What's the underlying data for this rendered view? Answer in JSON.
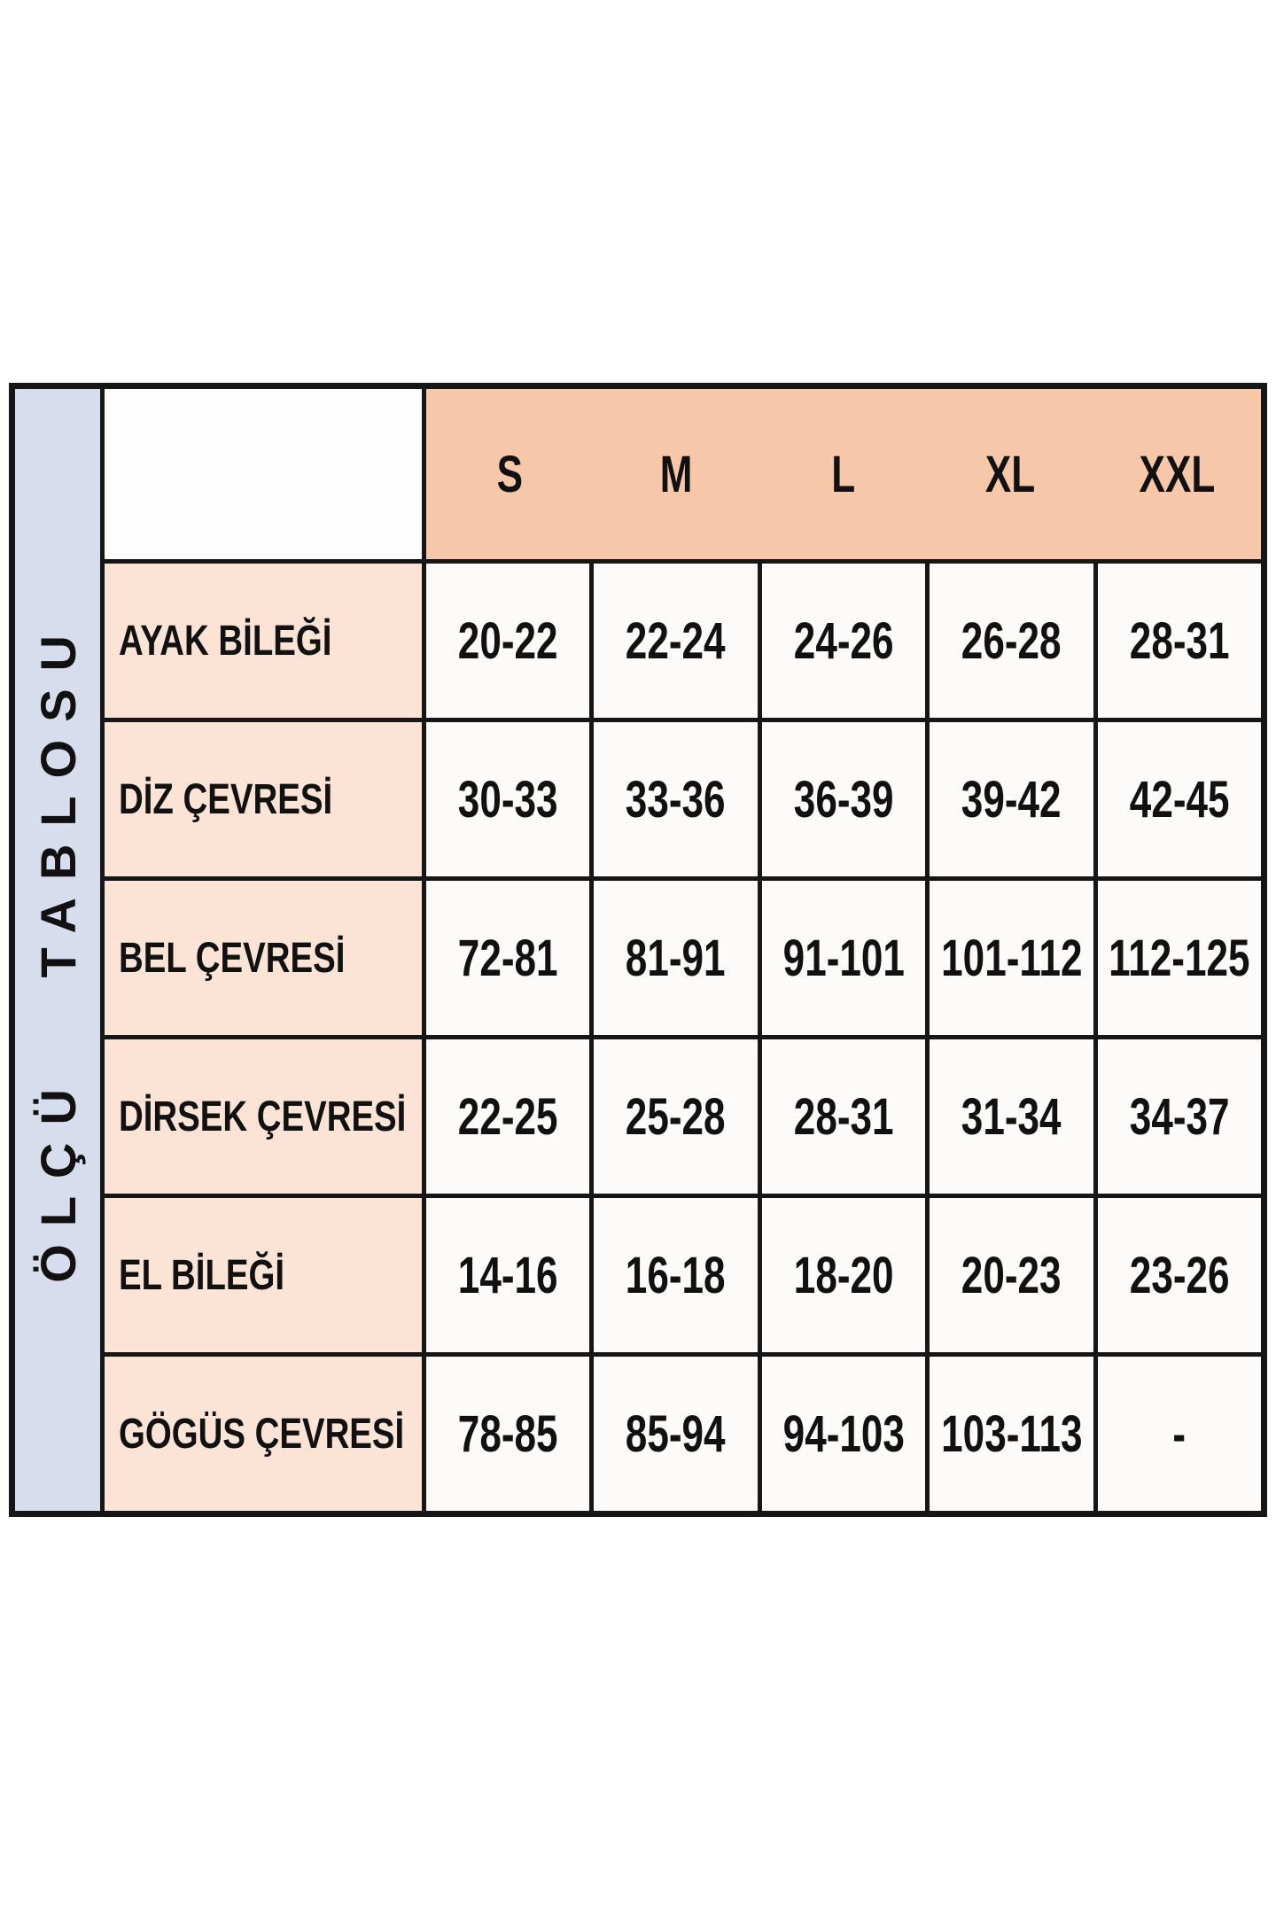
{
  "chart_data": {
    "type": "table",
    "title": "ÖLÇÜ TABLOSU",
    "columns": [
      "S",
      "M",
      "L",
      "XL",
      "XXL"
    ],
    "rows": [
      {
        "label": "AYAK BİLEĞİ",
        "values": [
          "20-22",
          "22-24",
          "24-26",
          "26-28",
          "28-31"
        ]
      },
      {
        "label": "DİZ ÇEVRESİ",
        "values": [
          "30-33",
          "33-36",
          "36-39",
          "39-42",
          "42-45"
        ]
      },
      {
        "label": "BEL ÇEVRESİ",
        "values": [
          "72-81",
          "81-91",
          "91-101",
          "101-112",
          "112-125"
        ]
      },
      {
        "label": "DİRSEK ÇEVRESİ",
        "values": [
          "22-25",
          "25-28",
          "28-31",
          "31-34",
          "34-37"
        ]
      },
      {
        "label": "EL BİLEĞİ",
        "values": [
          "14-16",
          "16-18",
          "18-20",
          "20-23",
          "23-26"
        ]
      },
      {
        "label": "GÖGÜS ÇEVRESİ",
        "values": [
          "78-85",
          "85-94",
          "94-103",
          "103-113",
          "-"
        ]
      }
    ],
    "layout": {
      "side_label_orientation": "vertical-bottom-to-top",
      "grid": "on"
    }
  },
  "colors": {
    "header_bg": "#f7c7a9",
    "row_label_bg": "#fbe3d5",
    "side_column_bg": "#d8ddee",
    "cell_bg": "#fcfbfa",
    "border": "#161616",
    "text": "#111111",
    "page_bg": "#ffffff"
  }
}
